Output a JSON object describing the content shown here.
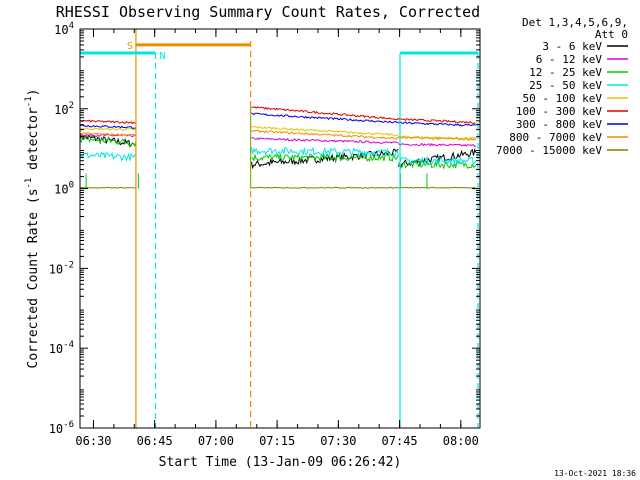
{
  "chart_data": {
    "type": "line",
    "title": "RHESSI Observing Summary Count Rates, Corrected",
    "xlabel": "Start Time (13-Jan-09 06:26:42)",
    "ylabel": "Corrected Count Rate (s⁻¹ detector⁻¹)",
    "ylabel_parts": [
      "Corrected Count Rate (s",
      "-1",
      " detector",
      "-1",
      ")"
    ],
    "yscale": "log",
    "xlim_minutes": [
      0,
      98
    ],
    "ylim": [
      1e-06,
      10000
    ],
    "x_ticks": [
      {
        "min": 3.3,
        "label": "06:30"
      },
      {
        "min": 18.3,
        "label": "06:45"
      },
      {
        "min": 33.3,
        "label": "07:00"
      },
      {
        "min": 48.3,
        "label": "07:15"
      },
      {
        "min": 63.3,
        "label": "07:30"
      },
      {
        "min": 78.3,
        "label": "07:45"
      },
      {
        "min": 93.3,
        "label": "08:00"
      }
    ],
    "y_ticks": [
      {
        "exp": -6,
        "label_base": "10",
        "label_exp": "-6"
      },
      {
        "exp": -4,
        "label_base": "10",
        "label_exp": "-4"
      },
      {
        "exp": -2,
        "label_base": "10",
        "label_exp": "-2"
      },
      {
        "exp": 0,
        "label_base": "10",
        "label_exp": "0"
      },
      {
        "exp": 2,
        "label_base": "10",
        "label_exp": "2"
      },
      {
        "exp": 4,
        "label_base": "10",
        "label_exp": "4"
      }
    ],
    "legend": {
      "position": "top-right",
      "header": [
        "Det 1,3,4,5,6,9,",
        "Att 0"
      ]
    },
    "series": [
      {
        "name": "3 - 6 keV",
        "color": "#000000",
        "segments": [
          [
            0,
            13.7,
            20,
            13
          ],
          [
            42,
            78,
            4,
            8
          ],
          [
            78,
            97,
            4,
            8
          ]
        ]
      },
      {
        "name": "6 - 12 keV",
        "color": "#d800d8",
        "segments": [
          [
            0,
            13.7,
            22,
            21
          ],
          [
            42,
            78,
            18,
            14
          ],
          [
            78,
            97,
            13,
            12
          ]
        ]
      },
      {
        "name": "12 - 25 keV",
        "color": "#00c800",
        "segments": [
          [
            0,
            13.7,
            18,
            14
          ],
          [
            42,
            78,
            6,
            6
          ],
          [
            78,
            97,
            4,
            4
          ]
        ]
      },
      {
        "name": "25 - 50 keV",
        "color": "#00e6e6",
        "segments": [
          [
            0,
            13.7,
            7,
            6
          ],
          [
            42,
            78,
            9,
            8
          ],
          [
            78,
            97,
            5,
            5
          ]
        ]
      },
      {
        "name": "50 - 100 keV",
        "color": "#e0c800",
        "segments": [
          [
            0,
            13.7,
            32,
            30
          ],
          [
            42,
            78,
            35,
            22
          ],
          [
            78,
            97,
            20,
            18
          ]
        ]
      },
      {
        "name": "100 - 300 keV",
        "color": "#e00000",
        "segments": [
          [
            0,
            13.7,
            50,
            45
          ],
          [
            42,
            78,
            110,
            55
          ],
          [
            78,
            97,
            55,
            45
          ]
        ]
      },
      {
        "name": "300 - 800 keV",
        "color": "#0000d8",
        "segments": [
          [
            0,
            13.7,
            38,
            34
          ],
          [
            42,
            78,
            75,
            45
          ],
          [
            78,
            97,
            45,
            38
          ]
        ]
      },
      {
        "name": "800 - 7000 keV",
        "color": "#f08c00",
        "segments": [
          [
            0,
            13.7,
            24,
            22
          ],
          [
            42,
            78,
            28,
            18
          ],
          [
            78,
            97,
            19,
            17
          ]
        ]
      },
      {
        "name": "7000 - 15000 keV",
        "color": "#808000",
        "segments": [
          [
            0,
            13.7,
            1.05,
            1.05
          ],
          [
            42,
            78,
            1.05,
            1.05
          ],
          [
            78,
            97,
            1.05,
            1.05
          ]
        ]
      }
    ],
    "annotations": [
      {
        "label": "S",
        "color": "#f08c00"
      },
      {
        "label": "N",
        "color": "#00e6e6"
      }
    ],
    "markers": {
      "saa_start_min": 13.7,
      "saa_end_min": 41.8,
      "night_start_min": 18.5,
      "night_bar1": [
        0,
        18.5
      ],
      "night_bar2": [
        78.4,
        97.5
      ],
      "night_line2_min": 78.4,
      "night_end2_min": 97.5
    },
    "grid": false,
    "footer": "13-Oct-2021 18:36"
  }
}
